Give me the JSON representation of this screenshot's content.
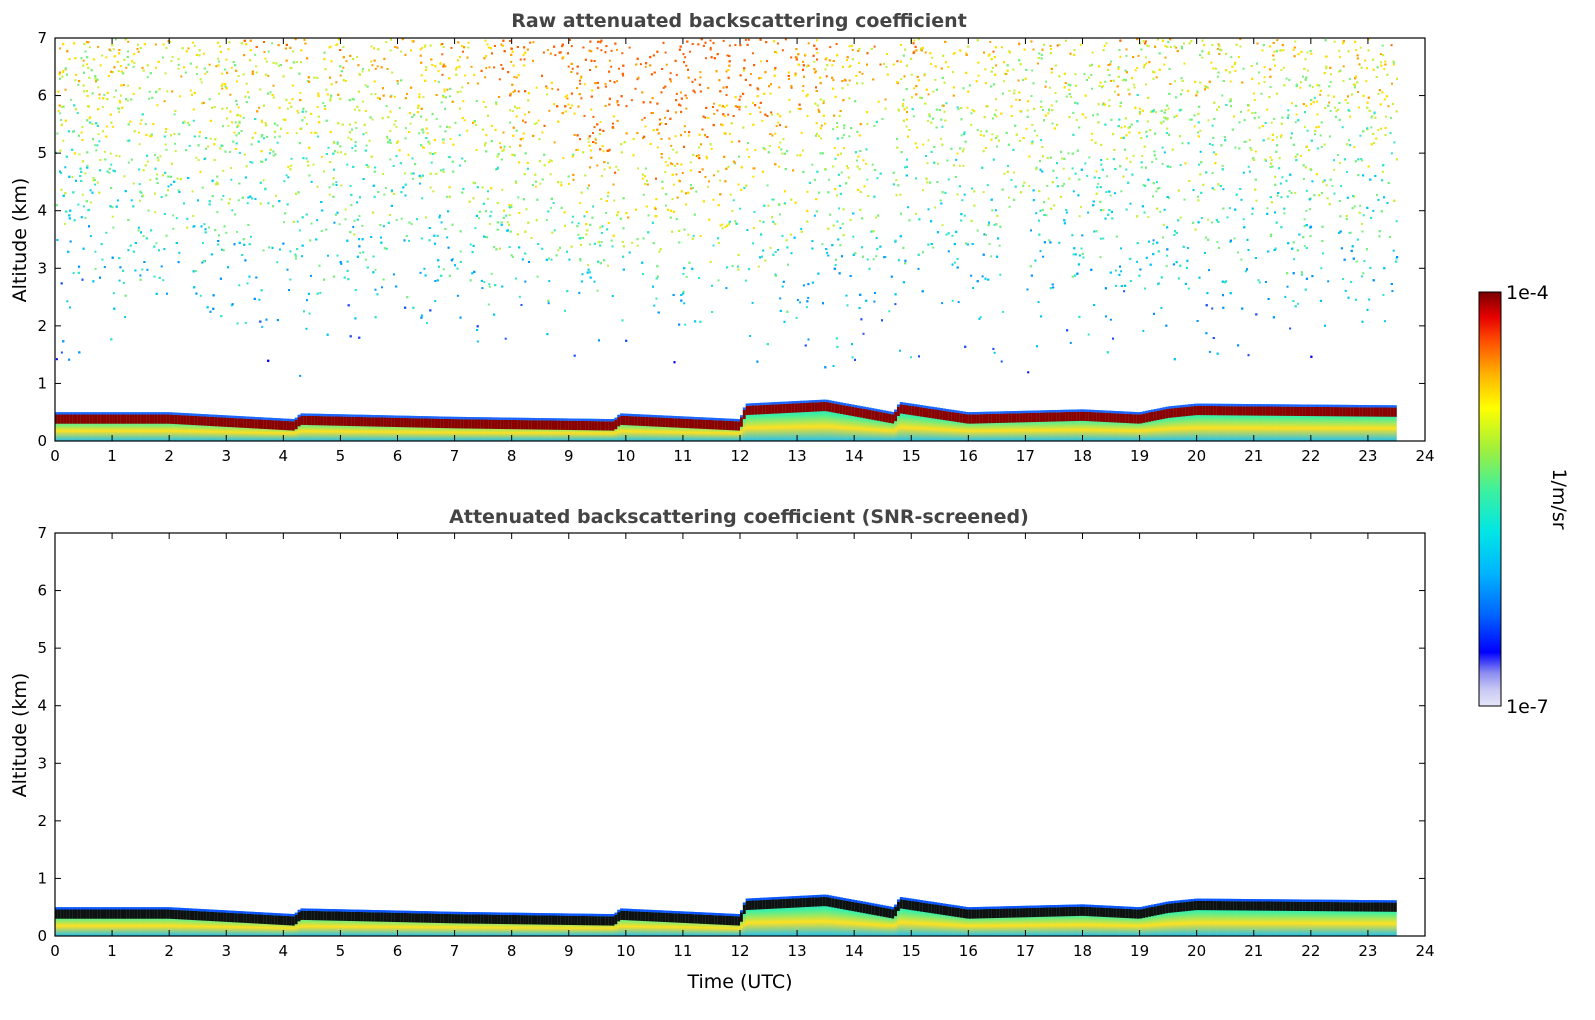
{
  "chart_data": [
    {
      "type": "heatmap",
      "title": "Raw attenuated backscattering coefficient",
      "xlabel": "",
      "ylabel": "Altitude (km)",
      "xlim": [
        0,
        24
      ],
      "ylim": [
        0,
        7
      ],
      "xticks": [
        0,
        1,
        2,
        3,
        4,
        5,
        6,
        7,
        8,
        9,
        10,
        11,
        12,
        13,
        14,
        15,
        16,
        17,
        18,
        19,
        20,
        21,
        22,
        23,
        24
      ],
      "yticks": [
        0,
        1,
        2,
        3,
        4,
        5,
        6,
        7
      ],
      "data_end_time": 23.5,
      "layer_top_km": {
        "time": [
          0,
          2,
          4.2,
          4.3,
          7,
          9.8,
          9.9,
          12,
          12.1,
          13.5,
          14.7,
          14.8,
          16,
          18,
          19,
          19.5,
          20,
          23.5
        ],
        "top": [
          0.5,
          0.5,
          0.38,
          0.48,
          0.42,
          0.38,
          0.48,
          0.38,
          0.65,
          0.72,
          0.5,
          0.68,
          0.5,
          0.55,
          0.5,
          0.6,
          0.65,
          0.62
        ]
      },
      "noise_field": "high above 5 km around 9-12 UTC; sparse below 1 km"
    },
    {
      "type": "heatmap",
      "title": "Attenuated backscattering coefficient (SNR-screened)",
      "xlabel": "Time (UTC)",
      "ylabel": "Altitude (km)",
      "xlim": [
        0,
        24
      ],
      "ylim": [
        0,
        7
      ],
      "xticks": [
        0,
        1,
        2,
        3,
        4,
        5,
        6,
        7,
        8,
        9,
        10,
        11,
        12,
        13,
        14,
        15,
        16,
        17,
        18,
        19,
        20,
        21,
        22,
        23,
        24
      ],
      "yticks": [
        0,
        1,
        2,
        3,
        4,
        5,
        6,
        7
      ],
      "data_end_time": 23.5,
      "layer_top_km": {
        "time": [
          0,
          2,
          4.2,
          4.3,
          7,
          9.8,
          9.9,
          12,
          12.1,
          13.5,
          14.7,
          14.8,
          16,
          18,
          19,
          19.5,
          20,
          23.5
        ],
        "top": [
          0.5,
          0.5,
          0.38,
          0.48,
          0.42,
          0.38,
          0.48,
          0.38,
          0.65,
          0.72,
          0.5,
          0.68,
          0.5,
          0.55,
          0.5,
          0.6,
          0.65,
          0.62
        ]
      }
    }
  ],
  "colorbar": {
    "max_label": "1e-4",
    "min_label": "1e-7",
    "units": "1/m/sr",
    "colors": [
      "#e6e6f8",
      "#c8c8f4",
      "#8c8cf0",
      "#0000ff",
      "#0064ff",
      "#00b4ff",
      "#00e6e6",
      "#3cf0a0",
      "#a0f03c",
      "#ffff00",
      "#ffb400",
      "#ff5000",
      "#e60000",
      "#780000"
    ]
  }
}
